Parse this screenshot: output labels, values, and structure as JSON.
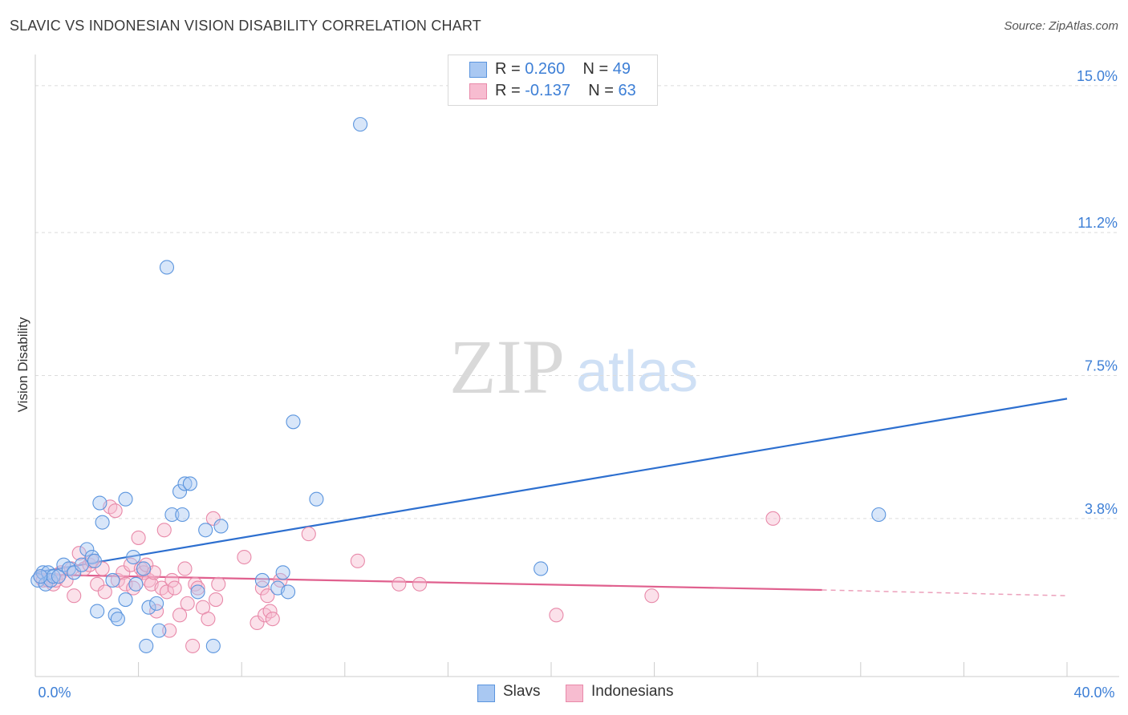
{
  "title": "SLAVIC VS INDONESIAN VISION DISABILITY CORRELATION CHART",
  "source": "Source: ZipAtlas.com",
  "watermark": {
    "zip": "ZIP",
    "atlas": "atlas"
  },
  "colors": {
    "slavs_fill": "#a9c8f2",
    "slavs_stroke": "#5b95de",
    "slavs_line": "#2d6fcf",
    "indo_fill": "#f7bcd0",
    "indo_stroke": "#e889a9",
    "indo_line": "#e0608e",
    "axis_text": "#3d7fd6"
  },
  "legend": {
    "slavs": {
      "r_label": "R =",
      "r_value": "0.260",
      "n_label": "N =",
      "n_value": "49"
    },
    "indonesians": {
      "r_label": "R =",
      "r_value": "-0.137",
      "n_label": "N =",
      "n_value": "63"
    }
  },
  "bottom_legend": {
    "slavs": "Slavs",
    "indonesians": "Indonesians"
  },
  "chart_data": {
    "type": "scatter",
    "title": "SLAVIC VS INDONESIAN VISION DISABILITY CORRELATION CHART",
    "xlabel": "",
    "ylabel": "Vision Disability",
    "xlim": [
      0,
      40
    ],
    "ylim": [
      0,
      15.6
    ],
    "x_tick_labels": [
      "0.0%",
      "40.0%"
    ],
    "y_ticks": [
      3.8,
      7.5,
      11.2,
      15.0
    ],
    "y_tick_labels": [
      "3.8%",
      "7.5%",
      "11.2%",
      "15.0%"
    ],
    "series": [
      {
        "name": "Slavs",
        "r": 0.26,
        "n": 49,
        "trend": {
          "x": [
            0,
            40
          ],
          "y": [
            2.4,
            6.9
          ]
        },
        "points": [
          [
            0.1,
            2.2
          ],
          [
            0.3,
            2.4
          ],
          [
            0.4,
            2.1
          ],
          [
            0.5,
            2.4
          ],
          [
            0.6,
            2.2
          ],
          [
            0.7,
            2.3
          ],
          [
            0.9,
            2.3
          ],
          [
            1.1,
            2.6
          ],
          [
            1.3,
            2.5
          ],
          [
            1.5,
            2.4
          ],
          [
            1.8,
            2.6
          ],
          [
            2.0,
            3.0
          ],
          [
            2.2,
            2.8
          ],
          [
            2.3,
            2.7
          ],
          [
            2.5,
            4.2
          ],
          [
            2.6,
            3.7
          ],
          [
            2.4,
            1.4
          ],
          [
            3.1,
            1.3
          ],
          [
            3.0,
            2.2
          ],
          [
            3.2,
            1.2
          ],
          [
            3.5,
            4.3
          ],
          [
            3.5,
            1.7
          ],
          [
            3.8,
            2.8
          ],
          [
            3.9,
            2.1
          ],
          [
            4.2,
            2.5
          ],
          [
            4.3,
            0.5
          ],
          [
            4.4,
            1.5
          ],
          [
            4.7,
            1.6
          ],
          [
            4.8,
            0.9
          ],
          [
            5.1,
            10.3
          ],
          [
            5.3,
            3.9
          ],
          [
            5.6,
            4.5
          ],
          [
            5.7,
            3.9
          ],
          [
            5.8,
            4.7
          ],
          [
            6.0,
            4.7
          ],
          [
            6.3,
            1.9
          ],
          [
            6.6,
            3.5
          ],
          [
            6.9,
            0.5
          ],
          [
            7.2,
            3.6
          ],
          [
            8.8,
            2.2
          ],
          [
            9.4,
            2.0
          ],
          [
            9.6,
            2.4
          ],
          [
            9.8,
            1.9
          ],
          [
            10.0,
            6.3
          ],
          [
            10.9,
            4.3
          ],
          [
            12.6,
            14.0
          ],
          [
            19.6,
            2.5
          ],
          [
            32.7,
            3.9
          ],
          [
            0.2,
            2.3
          ]
        ]
      },
      {
        "name": "Indonesians",
        "r": -0.137,
        "n": 63,
        "trend": {
          "x": [
            0,
            30.5
          ],
          "y": [
            2.35,
            1.95
          ]
        },
        "trend_dashed": {
          "x": [
            30.5,
            40
          ],
          "y": [
            1.95,
            1.8
          ]
        },
        "points": [
          [
            0.2,
            2.3
          ],
          [
            0.3,
            2.2
          ],
          [
            0.5,
            2.2
          ],
          [
            0.7,
            2.1
          ],
          [
            0.8,
            2.2
          ],
          [
            1.0,
            2.4
          ],
          [
            1.2,
            2.2
          ],
          [
            1.4,
            2.5
          ],
          [
            1.5,
            1.8
          ],
          [
            1.7,
            2.9
          ],
          [
            1.9,
            2.5
          ],
          [
            2.1,
            2.6
          ],
          [
            2.2,
            2.7
          ],
          [
            2.4,
            2.1
          ],
          [
            2.6,
            2.5
          ],
          [
            2.7,
            1.9
          ],
          [
            2.9,
            4.1
          ],
          [
            3.1,
            4.0
          ],
          [
            3.2,
            2.2
          ],
          [
            3.4,
            2.4
          ],
          [
            3.5,
            2.1
          ],
          [
            3.7,
            2.6
          ],
          [
            3.8,
            2.0
          ],
          [
            4.0,
            3.3
          ],
          [
            4.1,
            2.5
          ],
          [
            4.2,
            2.4
          ],
          [
            4.3,
            2.6
          ],
          [
            4.4,
            2.2
          ],
          [
            4.5,
            2.1
          ],
          [
            4.6,
            2.4
          ],
          [
            4.7,
            1.4
          ],
          [
            4.9,
            2.0
          ],
          [
            5.0,
            3.5
          ],
          [
            5.1,
            1.9
          ],
          [
            5.2,
            0.9
          ],
          [
            5.3,
            2.2
          ],
          [
            5.4,
            2.0
          ],
          [
            5.6,
            1.3
          ],
          [
            5.8,
            2.5
          ],
          [
            5.9,
            1.6
          ],
          [
            6.1,
            0.5
          ],
          [
            6.2,
            2.1
          ],
          [
            6.3,
            2.0
          ],
          [
            6.5,
            1.5
          ],
          [
            6.7,
            1.2
          ],
          [
            6.9,
            3.8
          ],
          [
            7.0,
            1.7
          ],
          [
            7.1,
            2.1
          ],
          [
            8.1,
            2.8
          ],
          [
            8.6,
            1.1
          ],
          [
            8.8,
            2.0
          ],
          [
            8.9,
            1.3
          ],
          [
            9.0,
            1.8
          ],
          [
            9.1,
            1.4
          ],
          [
            9.2,
            1.2
          ],
          [
            9.5,
            2.2
          ],
          [
            10.6,
            3.4
          ],
          [
            12.5,
            2.7
          ],
          [
            14.1,
            2.1
          ],
          [
            14.9,
            2.1
          ],
          [
            20.2,
            1.3
          ],
          [
            23.9,
            1.8
          ],
          [
            28.6,
            3.8
          ]
        ]
      }
    ]
  }
}
